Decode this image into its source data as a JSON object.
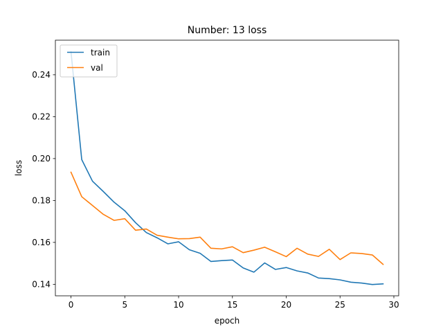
{
  "chart_data": {
    "type": "line",
    "title": "Number: 13 loss",
    "xlabel": "epoch",
    "ylabel": "loss",
    "xlim": [
      -1.45,
      30.45
    ],
    "ylim": [
      0.1345,
      0.2565
    ],
    "xticks": [
      0,
      5,
      10,
      15,
      20,
      25,
      30
    ],
    "yticks": [
      0.14,
      0.16,
      0.18,
      0.2,
      0.22,
      0.24
    ],
    "xtick_labels": [
      "0",
      "5",
      "10",
      "15",
      "20",
      "25",
      "30"
    ],
    "ytick_labels": [
      "0.14",
      "0.16",
      "0.18",
      "0.20",
      "0.22",
      "0.24"
    ],
    "grid": false,
    "legend": "upper-left",
    "x": [
      0,
      1,
      2,
      3,
      4,
      5,
      6,
      7,
      8,
      9,
      10,
      11,
      12,
      13,
      14,
      15,
      16,
      17,
      18,
      19,
      20,
      21,
      22,
      23,
      24,
      25,
      26,
      27,
      28,
      29
    ],
    "series": [
      {
        "name": "train",
        "color": "#1f77b4",
        "values": [
          0.251,
          0.1995,
          0.1892,
          0.1843,
          0.1792,
          0.1751,
          0.1694,
          0.1647,
          0.1622,
          0.1593,
          0.1603,
          0.1565,
          0.1548,
          0.1509,
          0.1513,
          0.1516,
          0.1478,
          0.1458,
          0.1502,
          0.1471,
          0.148,
          0.1464,
          0.1454,
          0.143,
          0.1427,
          0.1421,
          0.141,
          0.1406,
          0.1399,
          0.1402
        ]
      },
      {
        "name": "val",
        "color": "#ff7f0e",
        "values": [
          0.1935,
          0.1818,
          0.1776,
          0.1734,
          0.1705,
          0.1713,
          0.1658,
          0.1664,
          0.1634,
          0.1625,
          0.1617,
          0.1618,
          0.1625,
          0.1572,
          0.1569,
          0.1579,
          0.1551,
          0.1563,
          0.1577,
          0.1555,
          0.1532,
          0.1572,
          0.1544,
          0.1533,
          0.1567,
          0.1518,
          0.155,
          0.1547,
          0.154,
          0.1495
        ]
      }
    ]
  }
}
